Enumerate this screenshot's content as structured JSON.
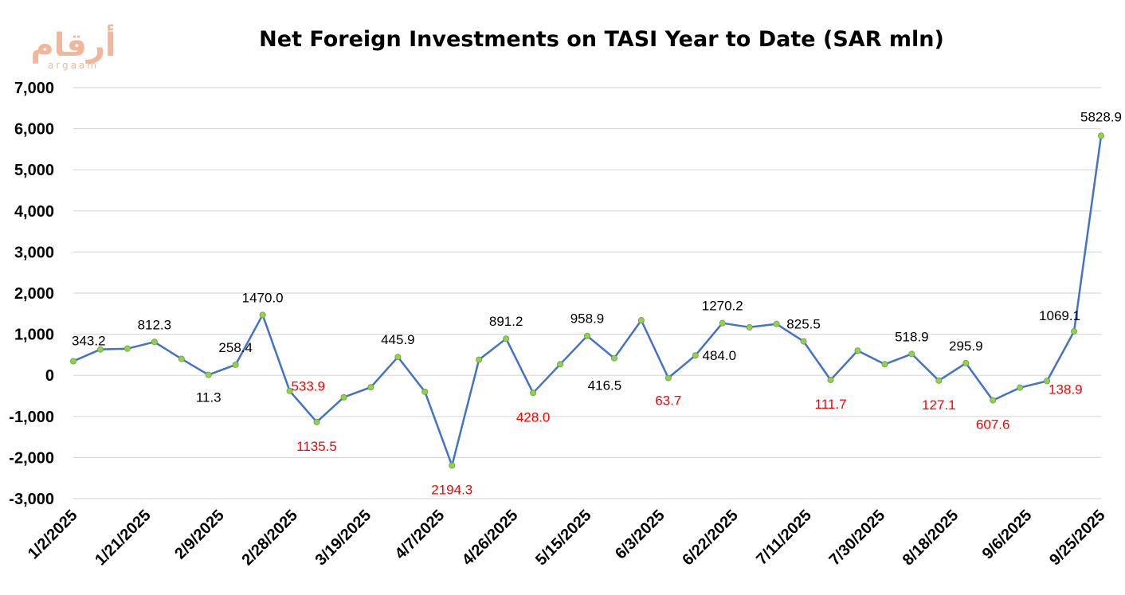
{
  "logo": {
    "arabic": "أرقام",
    "latin": "argaam"
  },
  "colors": {
    "line": "#4472C4",
    "marker": "#92D050",
    "positive_label": "#000000",
    "negative_label": "#FF0000",
    "grid": "#D9D9D9"
  },
  "chart_data": {
    "type": "line",
    "title": "Net Foreign Investments on TASI Year to Date (SAR mln)",
    "xlabel": "",
    "ylabel": "",
    "ylim": [
      -3000,
      7000
    ],
    "yticks": [
      "7,000",
      "6,000",
      "5,000",
      "4,000",
      "3,000",
      "2,000",
      "1,000",
      "0",
      "-1,000",
      "-2,000",
      "-3,000"
    ],
    "ytick_values": [
      7000,
      6000,
      5000,
      4000,
      3000,
      2000,
      1000,
      0,
      -1000,
      -2000,
      -3000
    ],
    "grid": true,
    "legend": "none",
    "x_tick_labels": [
      "1/2/2025",
      "1/21/2025",
      "2/9/2025",
      "2/28/2025",
      "3/19/2025",
      "4/7/2025",
      "4/26/2025",
      "5/15/2025",
      "6/3/2025",
      "6/22/2025",
      "7/11/2025",
      "7/30/2025",
      "8/18/2025",
      "9/6/2025",
      "9/25/2025"
    ],
    "series": [
      {
        "values": [
          343.2,
          630,
          650,
          812.3,
          400,
          11.3,
          258.4,
          1470.0,
          -380,
          -1135.5,
          -533.9,
          -290,
          445.9,
          -400,
          -2194.3,
          380,
          891.2,
          -428.0,
          270,
          958.9,
          416.5,
          1340,
          -63.7,
          484.0,
          1270.2,
          1170,
          1250,
          825.5,
          -111.7,
          600,
          270,
          518.9,
          -127.1,
          295.9,
          -607.6,
          -300,
          -138.9,
          1069.1,
          5828.9
        ],
        "point_labels": [
          "343.2",
          "",
          "",
          "812.3",
          "",
          "11.3",
          "258.4",
          "1470.0",
          "",
          "1135.5",
          "533.9",
          "",
          "445.9",
          "",
          "2194.3",
          "",
          "891.2",
          "428.0",
          "",
          "958.9",
          "416.5",
          "",
          "63.7",
          "484.0",
          "1270.2",
          "",
          "",
          "825.5",
          "111.7",
          "",
          "",
          "518.9",
          "127.1",
          "295.9",
          "607.6",
          "",
          "138.9",
          "1069.1",
          "5828.9"
        ]
      }
    ]
  }
}
